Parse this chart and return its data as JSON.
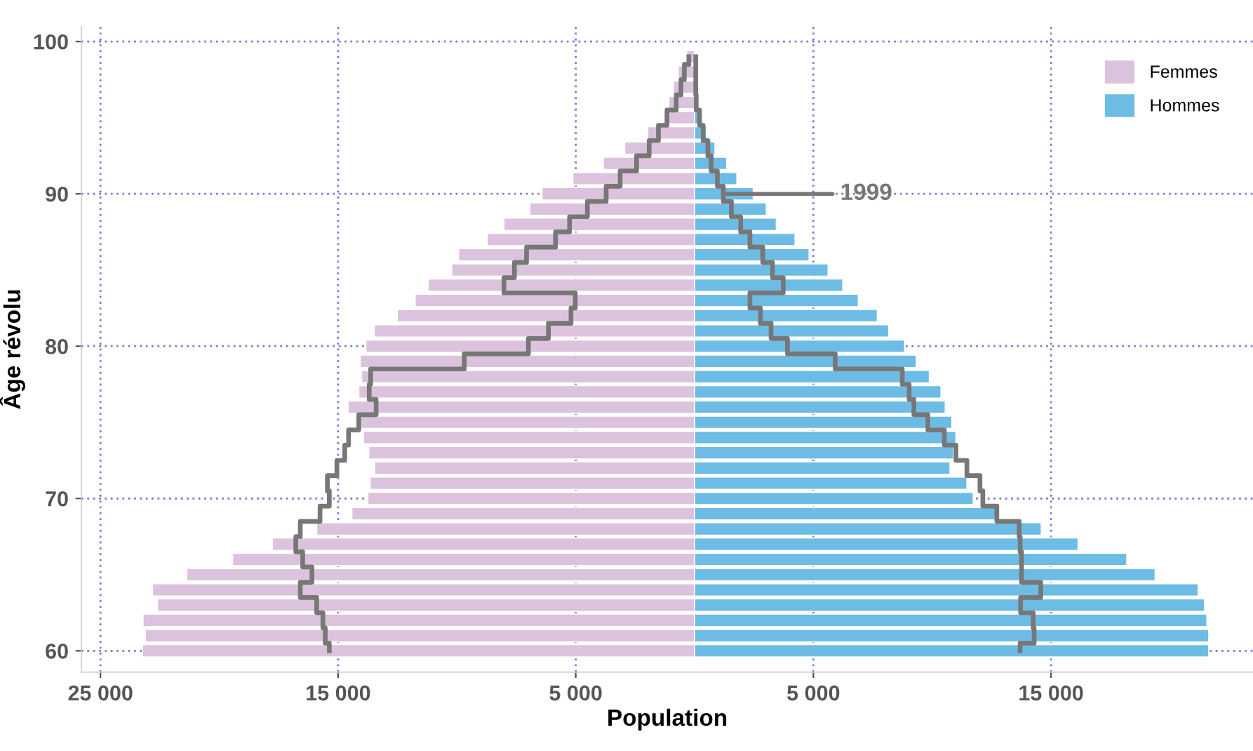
{
  "chart_data": {
    "type": "bar",
    "orientation": "horizontal",
    "xlabel": "Population",
    "ylabel": "Âge révolu",
    "x": [
      60,
      61,
      62,
      63,
      64,
      65,
      66,
      67,
      68,
      69,
      70,
      71,
      72,
      73,
      74,
      75,
      76,
      77,
      78,
      79,
      80,
      81,
      82,
      83,
      84,
      85,
      86,
      87,
      88,
      89,
      90,
      91,
      92,
      93,
      94,
      95,
      96,
      97,
      98,
      99
    ],
    "series": [
      {
        "name": "Femmes",
        "color": "#dcc3dd",
        "values": [
          -23230,
          -23110,
          -23210,
          -22600,
          -22810,
          -21370,
          -19440,
          -17770,
          -15900,
          -14420,
          -13750,
          -13650,
          -13460,
          -13710,
          -13930,
          -14130,
          -14580,
          -14130,
          -14010,
          -14070,
          -13830,
          -13480,
          -12510,
          -11760,
          -11210,
          -10220,
          -9930,
          -8730,
          -8020,
          -6930,
          -6420,
          -5120,
          -3840,
          -2940,
          -1970,
          -1160,
          -1080,
          -890,
          -690,
          -330
        ]
      },
      {
        "name": "Hommes",
        "color": "#6dbce5",
        "values": [
          21640,
          21640,
          21560,
          21460,
          21190,
          19380,
          18190,
          16140,
          14590,
          12680,
          11730,
          11460,
          10750,
          10900,
          11000,
          10830,
          10550,
          10370,
          9880,
          9330,
          8840,
          8170,
          7690,
          6890,
          6240,
          5620,
          4820,
          4230,
          3440,
          3020,
          2470,
          1780,
          1350,
          860,
          500,
          170,
          null,
          null,
          null,
          null
        ]
      },
      {
        "type": "step",
        "color": "#777777",
        "values": [
          -15370,
          -15540,
          -15640,
          -15900,
          -16590,
          -16100,
          -16490,
          -16780,
          -16590,
          -15760,
          -15370,
          -15450,
          -15050,
          -14720,
          -14560,
          -14130,
          -13400,
          -13690,
          -13630,
          -9690,
          -6990,
          -6150,
          -5200,
          -5020,
          -8020,
          -7580,
          -7070,
          -5850,
          -5260,
          -4510,
          -3720,
          -3130,
          -2440,
          -1910,
          -1520,
          -1160,
          -770,
          -570,
          -430,
          -240
        ]
      },
      {
        "type": "step",
        "name": "1999",
        "color": "#777777",
        "values": [
          13700,
          14290,
          14250,
          13720,
          14570,
          13760,
          13760,
          13700,
          13660,
          12720,
          12130,
          12010,
          11460,
          11000,
          10510,
          9820,
          9230,
          9030,
          8740,
          5920,
          3910,
          3220,
          2770,
          2330,
          3730,
          3280,
          2870,
          2330,
          1940,
          1550,
          1210,
          960,
          700,
          560,
          360,
          210,
          70,
          50,
          50,
          50
        ]
      }
    ],
    "xlim": [
      -25800,
      23500
    ],
    "ylim": [
      58.6,
      101
    ],
    "xticks": [
      {
        "value": -25000,
        "label": "25 000"
      },
      {
        "value": -15000,
        "label": "15 000"
      },
      {
        "value": -5000,
        "label": "5 000"
      },
      {
        "value": 5000,
        "label": "5 000"
      },
      {
        "value": 15000,
        "label": "15 000"
      }
    ],
    "yticks": [
      60,
      70,
      80,
      90,
      100
    ],
    "grid": true,
    "legend": "top right",
    "stacked": true
  }
}
